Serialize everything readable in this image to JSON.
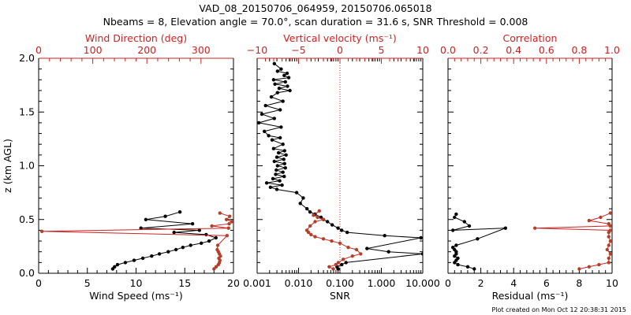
{
  "header": {
    "title_line1": "VAD_08_20150706_064959, 20150706.065018",
    "title_line2": "Nbeams = 8, Elevation angle = 70.0°, scan duration = 31.6 s, SNR Threshold = 0.008"
  },
  "footer": {
    "plot_created": "Plot created on Mon Oct 12 20:38:31 2015"
  },
  "colors": {
    "black": "#000000",
    "red": "#cc2222",
    "marker_red": "#b5402a"
  },
  "chart_data": [
    {
      "type": "line",
      "name": "wind-panel",
      "ylabel": "z (km AGL)",
      "ylim": [
        0.0,
        2.0
      ],
      "yticks": [
        "0.0",
        "0.5",
        "1.0",
        "1.5",
        "2.0"
      ],
      "bottom_axis": {
        "label": "Wind Speed (ms⁻¹)",
        "range": [
          0,
          20
        ],
        "ticks": [
          "0",
          "5",
          "10",
          "15",
          "20"
        ]
      },
      "top_axis": {
        "label": "Wind Direction (deg)",
        "range": [
          0,
          360
        ],
        "ticks": [
          "0",
          "100",
          "200",
          "300"
        ]
      },
      "series": [
        {
          "name": "Wind Speed",
          "axis": "bottom",
          "color": "black",
          "x": [
            7.6,
            7.8,
            8.1,
            8.9,
            9.8,
            10.7,
            11.6,
            12.4,
            13.3,
            14.1,
            14.8,
            15.6,
            16.7,
            17.5,
            18.2,
            17.2,
            13.9,
            16.5,
            10.5,
            15.8,
            11.0,
            13.0,
            14.5
          ],
          "z": [
            0.04,
            0.06,
            0.08,
            0.1,
            0.12,
            0.14,
            0.16,
            0.18,
            0.2,
            0.22,
            0.24,
            0.26,
            0.28,
            0.3,
            0.33,
            0.36,
            0.38,
            0.4,
            0.42,
            0.46,
            0.5,
            0.53,
            0.57
          ]
        },
        {
          "name": "Wind Direction",
          "axis": "top",
          "color": "red",
          "x": [
            324,
            328,
            332,
            334,
            335,
            333,
            336,
            334,
            332,
            330,
            331,
            348,
            6,
            351,
            320,
            352,
            357,
            347,
            353,
            335
          ],
          "z": [
            0.04,
            0.06,
            0.08,
            0.1,
            0.12,
            0.14,
            0.16,
            0.18,
            0.2,
            0.22,
            0.26,
            0.35,
            0.39,
            0.42,
            0.44,
            0.46,
            0.48,
            0.5,
            0.53,
            0.56
          ]
        }
      ]
    },
    {
      "type": "line",
      "name": "snr-panel",
      "ylim": [
        0.0,
        2.0
      ],
      "bottom_axis": {
        "label": "SNR",
        "scale": "log",
        "range": [
          0.001,
          10.0
        ],
        "ticks": [
          "0.001",
          "0.010",
          "0.100",
          "1.000",
          "10.000"
        ]
      },
      "top_axis": {
        "label": "Vertical velocity (ms⁻¹)",
        "range": [
          -10,
          10
        ],
        "ticks": [
          "−10",
          "−5",
          "0",
          "5",
          "10"
        ]
      },
      "zero_line": {
        "axis": "top",
        "value": 0
      },
      "series": [
        {
          "name": "SNR",
          "axis": "bottom",
          "color": "black",
          "x": [
            0.09,
            0.085,
            0.11,
            0.14,
            10.0,
            1.5,
            0.45,
            9.0,
            1.2,
            0.15,
            0.11,
            0.09,
            0.065,
            0.05,
            0.04,
            0.035,
            0.025,
            0.019,
            0.016,
            0.011,
            0.013,
            0.009,
            0.003,
            0.0021,
            0.004,
            0.0017,
            0.0035,
            0.0024,
            0.0045,
            0.0028,
            0.0042,
            0.0029,
            0.0048,
            0.0031,
            0.0046,
            0.0026,
            0.0044,
            0.003,
            0.005,
            0.0033,
            0.0046,
            0.0025,
            0.0042,
            0.0023,
            0.0036,
            0.0019,
            0.0015,
            0.0038,
            0.0011,
            0.0026,
            0.0013,
            0.0036,
            0.0016,
            0.0042,
            0.0022,
            0.0031,
            0.0062,
            0.0034,
            0.0054,
            0.0027,
            0.0048,
            0.0025,
            0.0058,
            0.0045,
            0.0053,
            0.0031,
            0.0038,
            0.0026
          ],
          "z": [
            0.04,
            0.06,
            0.08,
            0.1,
            0.18,
            0.2,
            0.23,
            0.33,
            0.35,
            0.38,
            0.4,
            0.42,
            0.45,
            0.48,
            0.5,
            0.52,
            0.55,
            0.57,
            0.6,
            0.65,
            0.7,
            0.75,
            0.78,
            0.8,
            0.82,
            0.84,
            0.86,
            0.88,
            0.9,
            0.92,
            0.94,
            0.96,
            0.98,
            1.0,
            1.02,
            1.04,
            1.06,
            1.08,
            1.1,
            1.12,
            1.14,
            1.16,
            1.2,
            1.24,
            1.26,
            1.28,
            1.32,
            1.36,
            1.4,
            1.44,
            1.48,
            1.52,
            1.56,
            1.6,
            1.64,
            1.68,
            1.7,
            1.72,
            1.74,
            1.76,
            1.78,
            1.8,
            1.82,
            1.84,
            1.86,
            1.88,
            1.9,
            1.95
          ]
        },
        {
          "name": "Vertical velocity",
          "axis": "top",
          "color": "red",
          "x": [
            -0.8,
            -1.3,
            -0.5,
            -0.2,
            0.4,
            1.5,
            2.5,
            2.0,
            1.0,
            0.0,
            -1.0,
            -2.0,
            -3.0,
            -3.5,
            -3.8,
            -4.0,
            -3.6,
            -3.0,
            -2.0,
            -2.7,
            -3.2,
            -2.5
          ],
          "z": [
            0.04,
            0.06,
            0.08,
            0.1,
            0.13,
            0.16,
            0.18,
            0.22,
            0.24,
            0.28,
            0.3,
            0.32,
            0.34,
            0.36,
            0.38,
            0.4,
            0.44,
            0.48,
            0.5,
            0.52,
            0.54,
            0.58
          ]
        }
      ]
    },
    {
      "type": "line",
      "name": "residual-panel",
      "ylim": [
        0.0,
        2.0
      ],
      "bottom_axis": {
        "label": "Residual (ms⁻¹)",
        "range": [
          0,
          10
        ],
        "ticks": [
          "0",
          "2",
          "4",
          "6",
          "8",
          "10"
        ]
      },
      "top_axis": {
        "label": "Correlation",
        "range": [
          0.0,
          1.0
        ],
        "ticks": [
          "0.0",
          "0.2",
          "0.4",
          "0.6",
          "0.8",
          "1.0"
        ]
      },
      "series": [
        {
          "name": "Residual",
          "axis": "bottom",
          "color": "black",
          "x": [
            1.6,
            1.2,
            0.6,
            0.4,
            0.5,
            0.6,
            0.4,
            0.5,
            0.5,
            0.4,
            0.3,
            0.5,
            1.8,
            3.5,
            0.3,
            1.3,
            1.0,
            0.4,
            0.5
          ],
          "z": [
            0.04,
            0.06,
            0.08,
            0.1,
            0.12,
            0.14,
            0.16,
            0.18,
            0.2,
            0.22,
            0.24,
            0.26,
            0.32,
            0.42,
            0.4,
            0.44,
            0.48,
            0.52,
            0.55
          ]
        },
        {
          "name": "Correlation",
          "axis": "top",
          "color": "red",
          "x": [
            0.8,
            0.86,
            0.92,
            0.98,
            0.98,
            0.99,
            0.97,
            0.98,
            0.99,
            0.98,
            0.98,
            0.99,
            0.53,
            0.99,
            0.98,
            0.86,
            0.93,
            0.99
          ],
          "z": [
            0.04,
            0.06,
            0.08,
            0.1,
            0.14,
            0.18,
            0.22,
            0.26,
            0.3,
            0.34,
            0.38,
            0.4,
            0.42,
            0.44,
            0.46,
            0.49,
            0.52,
            0.56
          ]
        }
      ]
    }
  ]
}
